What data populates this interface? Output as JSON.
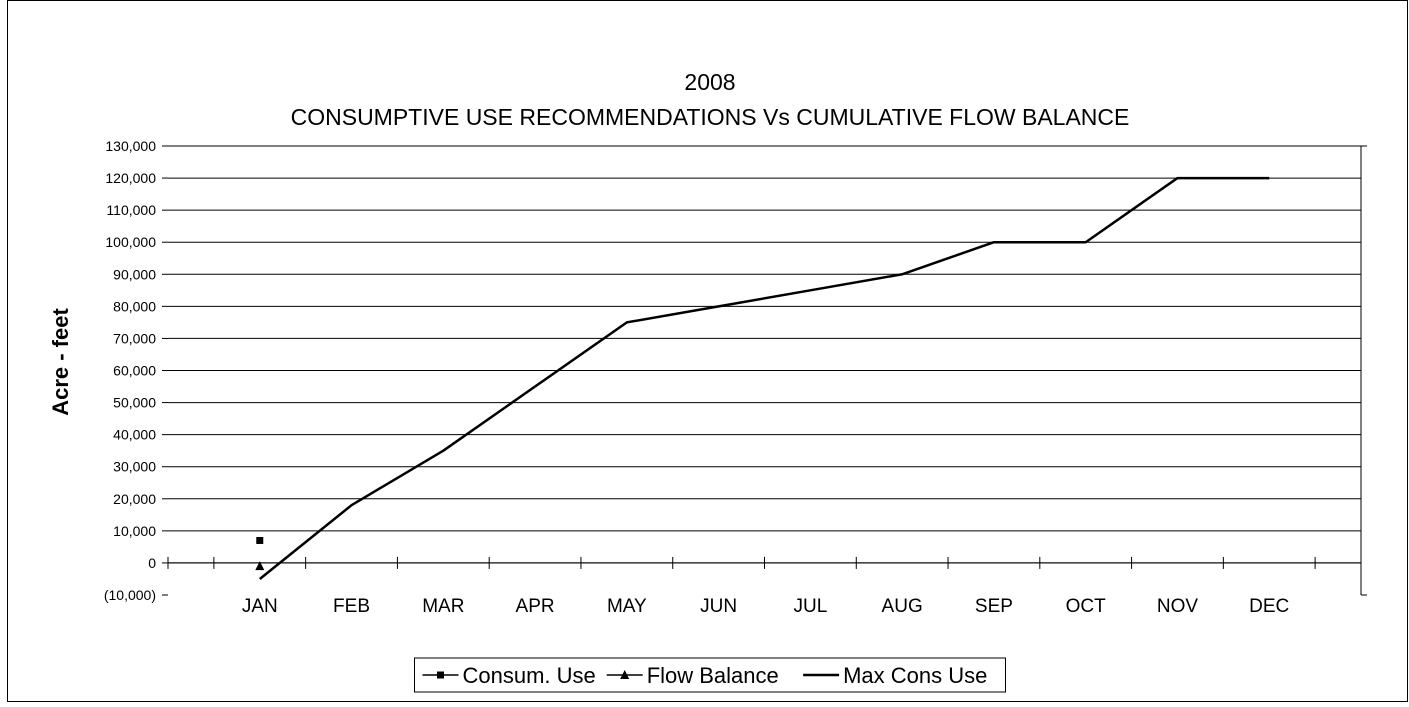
{
  "chart_data": {
    "type": "line",
    "title": "2008",
    "subtitle": "CONSUMPTIVE USE RECOMMENDATIONS Vs CUMULATIVE FLOW BALANCE",
    "xlabel": "",
    "ylabel": "Acre - feet",
    "categories": [
      "JAN",
      "FEB",
      "MAR",
      "APR",
      "MAY",
      "JUN",
      "JUL",
      "AUG",
      "SEP",
      "OCT",
      "NOV",
      "DEC"
    ],
    "ylim": [
      -10000,
      130000
    ],
    "yticks": [
      -10000,
      0,
      10000,
      20000,
      30000,
      40000,
      50000,
      60000,
      70000,
      80000,
      90000,
      100000,
      110000,
      120000,
      130000
    ],
    "ytick_labels": [
      "(10,000)",
      "0",
      "10,000",
      "20,000",
      "30,000",
      "40,000",
      "50,000",
      "60,000",
      "70,000",
      "80,000",
      "90,000",
      "100,000",
      "110,000",
      "120,000",
      "130,000"
    ],
    "grid": true,
    "legend_position": "bottom",
    "series": [
      {
        "name": "Consum. Use",
        "marker": "square",
        "line": true,
        "color": "#000000",
        "values": [
          7000,
          null,
          null,
          null,
          null,
          null,
          null,
          null,
          null,
          null,
          null,
          null
        ]
      },
      {
        "name": "Flow Balance",
        "marker": "triangle",
        "line": true,
        "color": "#000000",
        "values": [
          -1000,
          null,
          null,
          null,
          null,
          null,
          null,
          null,
          null,
          null,
          null,
          null
        ]
      },
      {
        "name": "Max Cons Use",
        "marker": "none",
        "line": true,
        "color": "#000000",
        "values": [
          -5000,
          18000,
          35000,
          55000,
          75000,
          80000,
          85000,
          90000,
          100000,
          100000,
          120000,
          120000
        ]
      }
    ]
  }
}
